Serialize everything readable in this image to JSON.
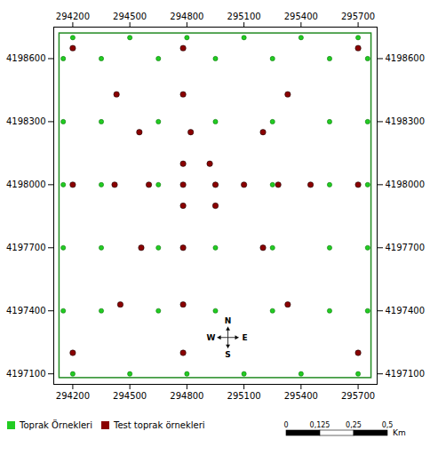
{
  "chart_data": {
    "type": "scatter",
    "xlim": [
      294100,
      295800
    ],
    "ylim": [
      4197050,
      4198750
    ],
    "xticks": [
      294200,
      294500,
      294800,
      295100,
      295400,
      295700
    ],
    "yticks": [
      4197100,
      4197400,
      4197700,
      4198000,
      4198300,
      4198600
    ],
    "grid": false,
    "legend": "lower left",
    "rectangle": {
      "x1": 294130,
      "x2": 295770,
      "y1": 4197080,
      "y2": 4198720,
      "color": "#228B22"
    },
    "series": [
      {
        "name": "Toprak Örnekleri",
        "color": "#22cc22",
        "values": [
          [
            294350,
            4198600
          ],
          [
            294650,
            4198600
          ],
          [
            294950,
            4198600
          ],
          [
            295250,
            4198600
          ],
          [
            295550,
            4198600
          ],
          [
            294350,
            4198300
          ],
          [
            294650,
            4198300
          ],
          [
            294950,
            4198300
          ],
          [
            295250,
            4198300
          ],
          [
            295550,
            4198300
          ],
          [
            294350,
            4198000
          ],
          [
            294650,
            4198000
          ],
          [
            294950,
            4198000
          ],
          [
            295250,
            4198000
          ],
          [
            295550,
            4198000
          ],
          [
            294350,
            4197700
          ],
          [
            294650,
            4197700
          ],
          [
            294950,
            4197700
          ],
          [
            295250,
            4197700
          ],
          [
            295550,
            4197700
          ],
          [
            294350,
            4197400
          ],
          [
            294650,
            4197400
          ],
          [
            294950,
            4197400
          ],
          [
            295250,
            4197400
          ],
          [
            295550,
            4197400
          ],
          [
            294200,
            4198700
          ],
          [
            294500,
            4198700
          ],
          [
            294800,
            4198700
          ],
          [
            295100,
            4198700
          ],
          [
            295400,
            4198700
          ],
          [
            295700,
            4198700
          ],
          [
            294200,
            4197100
          ],
          [
            294500,
            4197100
          ],
          [
            294800,
            4197100
          ],
          [
            295100,
            4197100
          ],
          [
            295400,
            4197100
          ],
          [
            295700,
            4197100
          ],
          [
            294150,
            4197400
          ],
          [
            294150,
            4197700
          ],
          [
            294150,
            4198000
          ],
          [
            294150,
            4198300
          ],
          [
            294150,
            4198600
          ],
          [
            295750,
            4197400
          ],
          [
            295750,
            4197700
          ],
          [
            295750,
            4198000
          ],
          [
            295750,
            4198300
          ],
          [
            295750,
            4198600
          ]
        ]
      },
      {
        "name": "Test toprak örnekleri",
        "color": "#8b0000",
        "values": [
          [
            294200,
            4198650
          ],
          [
            294780,
            4198650
          ],
          [
            295700,
            4198650
          ],
          [
            294430,
            4198430
          ],
          [
            294780,
            4198430
          ],
          [
            295330,
            4198430
          ],
          [
            294550,
            4198250
          ],
          [
            294820,
            4198250
          ],
          [
            295200,
            4198250
          ],
          [
            294780,
            4198100
          ],
          [
            294920,
            4198100
          ],
          [
            294200,
            4198000
          ],
          [
            294420,
            4198000
          ],
          [
            294600,
            4198000
          ],
          [
            294780,
            4198000
          ],
          [
            294950,
            4198000
          ],
          [
            295100,
            4198000
          ],
          [
            295280,
            4198000
          ],
          [
            295450,
            4198000
          ],
          [
            295700,
            4198000
          ],
          [
            294780,
            4197900
          ],
          [
            294950,
            4197900
          ],
          [
            294560,
            4197700
          ],
          [
            294780,
            4197700
          ],
          [
            295200,
            4197700
          ],
          [
            294450,
            4197430
          ],
          [
            294780,
            4197430
          ],
          [
            295330,
            4197430
          ],
          [
            294200,
            4197200
          ],
          [
            294780,
            4197200
          ],
          [
            295700,
            4197200
          ]
        ]
      }
    ],
    "annotations": [
      "N",
      "S",
      "E",
      "W"
    ],
    "scale_bar": {
      "ticks": [
        0,
        {
          "value": 0.125,
          "label": "0,125"
        },
        {
          "value": 0.25,
          "label": "0,25"
        },
        {
          "value": 0.5,
          "label": "0,5"
        }
      ],
      "unit": "Km"
    }
  }
}
